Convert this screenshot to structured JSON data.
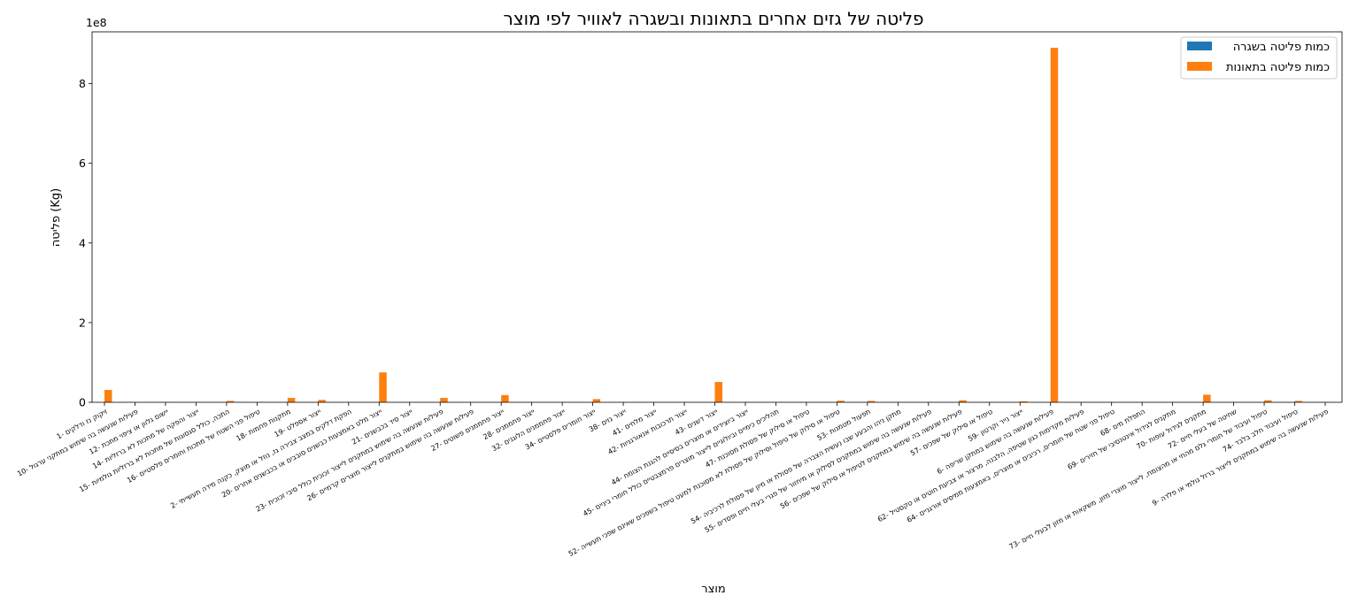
{
  "chart_data": {
    "type": "bar",
    "title": "פליטה של גזים אחרים בתאונות ובשגרה לאוויר לפי מוצר",
    "xlabel": "מוצר",
    "ylabel": "פליטה (Kg)",
    "y_scale_label": "1e8",
    "ylim": [
      0,
      930000000
    ],
    "yticks": [
      0,
      200000000,
      400000000,
      600000000,
      800000000
    ],
    "ytick_labels": [
      "0",
      "2",
      "4",
      "6",
      "8"
    ],
    "grid": false,
    "legend_position": "top-right",
    "categories": [
      "1- זיקוק נז ודלקים",
      "10- פעילות שנעשה בה שימוש במתקני ערגול",
      "12- יישום גלוון או ציפוי מתכת",
      "14- ייצור והפקה של מתכות לא ברזליות",
      "15- התכה, כולל סגסוגות של מתכות לא ברזליות גולמיות",
      "16- טיפול פני השטח של מתכות וחומרים פלסטיים",
      "18- מתקנות פחמות",
      "19- ייצור אספלט",
      "2- הפקת דלקים במצב צבירה גז, נוזל או מוצק, כקנה מידה תעשייתי",
      "20- ייצור מלט באמצעות כבשנים סובבים או בכבשנים אחרים",
      "21- ייצור סיד בכבשנים",
      "23- פעילות שנעשה בה שימוש במתקנים לייצור זכוכית כולל סיבי זכוכית",
      "26- פעילות שנעשה בה שימוש במתקנים לייצור מוצרים קרמיים",
      "27- ייצור פחממנים פשוטים",
      "28- ייצור פחממנים",
      "32- ייצור פחממנים הלוגנים",
      "34- ייצור חומרים פלסטיים",
      "38- ייצור גזים",
      "41- ייצור מלחים",
      "42- ייצור תרכובות אנאורגניות",
      "43- ייצור דשנים",
      "44- ייצור ביוצידים או מוצרים בסיסיים להגנת הצומח",
      "45- תהליכים כימיים וביולוגיים לייצור מוצרים פרמצבטיים כולל חומרי ביניים",
      "47- טיפול או סילוק של פסולת מסוכנת",
      "52- טיפול או סילוק של טיפול וסילוק של פסולת לא מסוכנת למעט טיפול בשפכים שאינם שפכי תעשייה",
      "53- תפעול מטמנות",
      "54- מתקן ניהו והבעע שבו נעשית הצברה של פסולת או מיון של פסולת לרכיביה",
      "55- פעילות שנעשה בה שימוש במתקנים לסילוק או מיחזור של פגרי בעלי חיים ופסדים",
      "56- פעילות שנעשה בה שימוש במתקנים לטיפול או סילוק של שפכים",
      "57- טיפול או סילוק של שפכים",
      "59- ייצור נייר וקרטון",
      "6- פעילות שנעשה בה שימוש במתקן שריפה",
      "62- פעילות מקדימות כגון שטיפה, הלבנה, מרצור או צביעת חוטים או טקסטיל",
      "64- טיפול פני שטח של חומרים, רכיבים או מוצרים, באמצעות ממיסים אורגניים",
      "68- התפלת מים",
      "69- מתקנים לגידול אינטנסיבי של חזירים",
      "70- מתקנים לגידול עופות",
      "72- שחיטה של בעלי חיים",
      "73- טיפול ועיבוד של חומרי גלם מהחי או מהצומח, לייצור מוצרי מזון, משקאות או מזון לבעלי חיים",
      "74- טיפול ועיבוד חלב בלבד",
      "9- פעילות שנעשה בה שימוש במתקנים לייצור ברזל גולמי או פלדה"
    ],
    "series": [
      {
        "name": "כמות פליטה בשגרה",
        "color": "#1f77b4",
        "values": [
          0,
          0,
          0,
          0,
          0,
          0,
          0,
          0,
          0,
          0,
          0,
          0,
          0,
          0,
          0,
          0,
          0,
          0,
          0,
          0,
          0,
          0,
          0,
          0,
          0,
          0,
          0,
          0,
          0,
          0,
          0,
          0,
          0,
          0,
          0,
          0,
          0,
          0,
          0,
          0,
          0
        ]
      },
      {
        "name": "כמות פליטה בתאונות",
        "color": "#ff7f0e",
        "values": [
          31000000,
          0,
          500000,
          500000,
          3500000,
          800000,
          11000000,
          6000000,
          0,
          75000000,
          0,
          11000000,
          0,
          18000000,
          0,
          0,
          8000000,
          0,
          0,
          0,
          51000000,
          0,
          0,
          0,
          4000000,
          3500000,
          0,
          0,
          5000000,
          0,
          2500000,
          890000000,
          0,
          0,
          0,
          0,
          19000000,
          0,
          5000000,
          3500000,
          0
        ]
      }
    ]
  }
}
